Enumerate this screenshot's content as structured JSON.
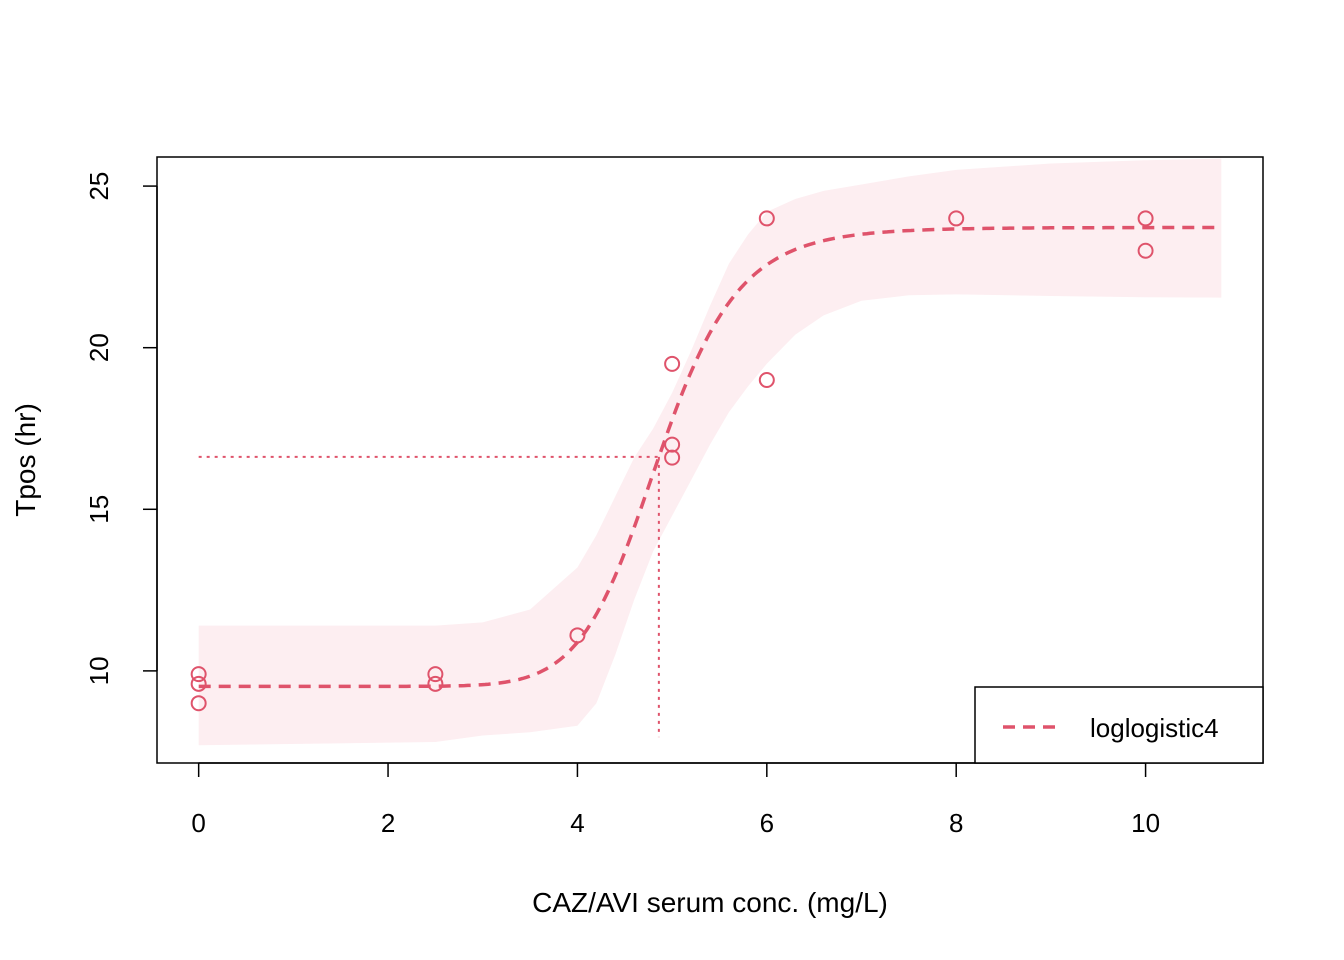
{
  "chart_data": {
    "type": "scatter",
    "xlabel": "CAZ/AVI serum conc. (mg/L)",
    "ylabel": "Tpos (hr)",
    "xlim": [
      -0.44,
      11.24
    ],
    "ylim": [
      7.15,
      25.9
    ],
    "x_ticks": [
      0,
      2,
      4,
      6,
      8,
      10
    ],
    "y_ticks": [
      10,
      15,
      20,
      25
    ],
    "grid": false,
    "legend_position": "bottom-right",
    "color": "#DF536B",
    "band_color": "#FDEEF1",
    "points": [
      {
        "x": 0,
        "y": 9.9
      },
      {
        "x": 0,
        "y": 9.6
      },
      {
        "x": 0,
        "y": 9.0
      },
      {
        "x": 2.5,
        "y": 9.9
      },
      {
        "x": 2.5,
        "y": 9.6
      },
      {
        "x": 4,
        "y": 11.1
      },
      {
        "x": 5,
        "y": 19.5
      },
      {
        "x": 5,
        "y": 17.0
      },
      {
        "x": 5,
        "y": 16.6
      },
      {
        "x": 6,
        "y": 24.0
      },
      {
        "x": 6,
        "y": 19.0
      },
      {
        "x": 8,
        "y": 24.0
      },
      {
        "x": 10,
        "y": 24.0
      },
      {
        "x": 10,
        "y": 23.0
      }
    ],
    "fit": {
      "name": "loglogistic4",
      "model": "loglogistic4",
      "lower": 9.52,
      "upper": 23.72,
      "ed50": 4.86,
      "slope": 11.5,
      "x_range": [
        0,
        10.8
      ]
    },
    "confidence_band": {
      "x": [
        0,
        2.5,
        3.0,
        3.5,
        4.0,
        4.2,
        4.4,
        4.6,
        4.8,
        5.0,
        5.2,
        5.4,
        5.6,
        5.8,
        6.0,
        6.3,
        6.6,
        7.0,
        7.5,
        8.0,
        9.0,
        10.0,
        10.8
      ],
      "lower": [
        7.7,
        7.8,
        8.0,
        8.1,
        8.3,
        9.0,
        10.5,
        12.2,
        13.7,
        14.8,
        15.9,
        17.0,
        18.0,
        18.8,
        19.5,
        20.4,
        21.0,
        21.45,
        21.62,
        21.65,
        21.6,
        21.56,
        21.55
      ],
      "upper": [
        11.4,
        11.4,
        11.5,
        11.9,
        13.2,
        14.2,
        15.4,
        16.6,
        17.5,
        18.6,
        19.9,
        21.3,
        22.6,
        23.5,
        24.2,
        24.6,
        24.85,
        25.05,
        25.3,
        25.5,
        25.7,
        25.8,
        25.85
      ]
    },
    "reference_lines": {
      "y": 16.62,
      "x": 4.86,
      "x_from": 0,
      "y_from": 7.95
    }
  }
}
